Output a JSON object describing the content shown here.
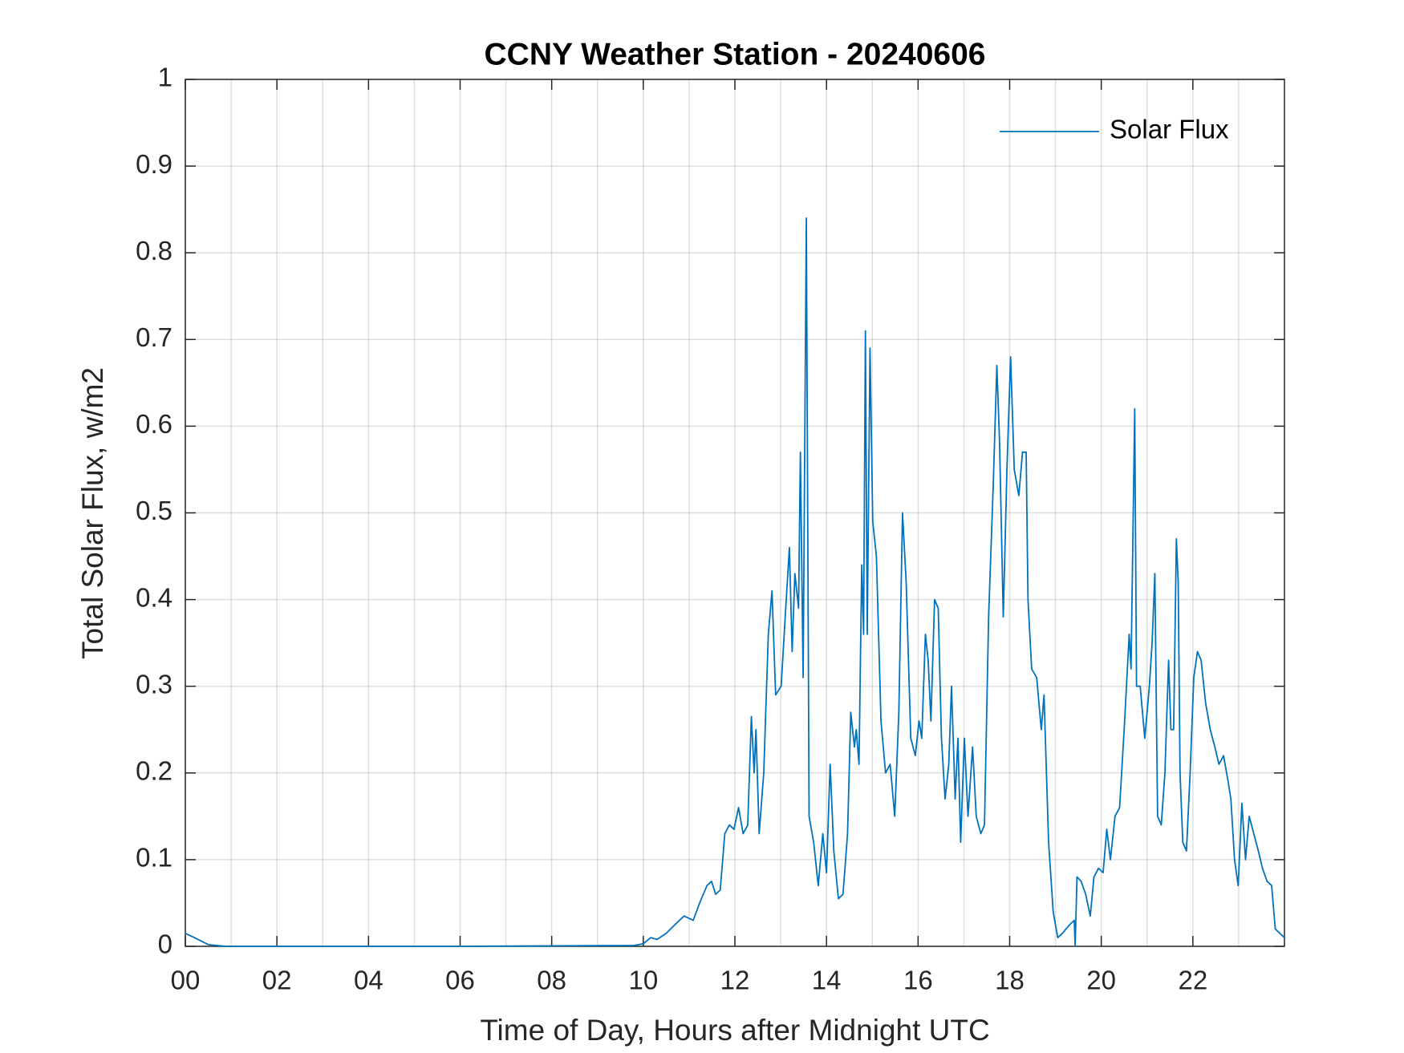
{
  "chart_data": {
    "type": "line",
    "title": "CCNY Weather Station - 20240606",
    "xlabel": "Time of Day, Hours after Midnight UTC",
    "ylabel": "Total Solar Flux, w/m2",
    "xlim": [
      0,
      24
    ],
    "ylim": [
      0,
      1
    ],
    "xticks": [
      {
        "value": 0,
        "label": "00"
      },
      {
        "value": 2,
        "label": "02"
      },
      {
        "value": 4,
        "label": "04"
      },
      {
        "value": 6,
        "label": "06"
      },
      {
        "value": 8,
        "label": "08"
      },
      {
        "value": 10,
        "label": "10"
      },
      {
        "value": 12,
        "label": "12"
      },
      {
        "value": 14,
        "label": "14"
      },
      {
        "value": 16,
        "label": "16"
      },
      {
        "value": 18,
        "label": "18"
      },
      {
        "value": 20,
        "label": "20"
      },
      {
        "value": 22,
        "label": "22"
      }
    ],
    "xminorticks": [
      1,
      3,
      5,
      7,
      9,
      11,
      13,
      15,
      17,
      19,
      21,
      23
    ],
    "yticks": [
      0,
      0.1,
      0.2,
      0.3,
      0.4,
      0.5,
      0.6,
      0.7,
      0.8,
      0.9,
      1
    ],
    "grid": true,
    "legend": "northeast",
    "x": [
      0,
      0.2,
      0.5,
      0.89,
      5.84,
      9.8,
      10.0,
      10.16,
      10.3,
      10.5,
      10.69,
      10.89,
      11.09,
      11.23,
      11.39,
      11.49,
      11.58,
      11.68,
      11.78,
      11.88,
      11.98,
      12.08,
      12.18,
      12.28,
      12.36,
      12.42,
      12.46,
      12.53,
      12.63,
      12.73,
      12.81,
      12.89,
      13.01,
      13.11,
      13.19,
      13.25,
      13.31,
      13.39,
      13.43,
      13.49,
      13.56,
      13.62,
      13.72,
      13.82,
      13.92,
      14.0,
      14.08,
      14.16,
      14.26,
      14.36,
      14.46,
      14.53,
      14.61,
      14.65,
      14.71,
      14.77,
      14.81,
      14.85,
      14.89,
      14.95,
      15.01,
      15.09,
      15.19,
      15.29,
      15.39,
      15.49,
      15.58,
      15.66,
      15.74,
      15.84,
      15.94,
      16.02,
      16.08,
      16.16,
      16.22,
      16.28,
      16.36,
      16.44,
      16.51,
      16.59,
      16.67,
      16.73,
      16.81,
      16.87,
      16.93,
      17.01,
      17.09,
      17.19,
      17.27,
      17.37,
      17.45,
      17.54,
      17.64,
      17.72,
      17.78,
      17.86,
      17.94,
      18.02,
      18.1,
      18.2,
      18.28,
      18.36,
      18.4,
      18.48,
      18.59,
      18.69,
      18.75,
      18.85,
      18.95,
      19.05,
      19.15,
      19.31,
      19.41,
      19.43,
      19.47,
      19.56,
      19.66,
      19.76,
      19.84,
      19.94,
      20.04,
      20.12,
      20.2,
      20.3,
      20.4,
      20.5,
      20.55,
      20.61,
      20.65,
      20.73,
      20.77,
      20.85,
      20.95,
      21.05,
      21.11,
      21.17,
      21.23,
      21.31,
      21.39,
      21.47,
      21.52,
      21.58,
      21.64,
      21.68,
      21.72,
      21.78,
      21.86,
      21.94,
      22.02,
      22.1,
      22.18,
      22.28,
      22.38,
      22.48,
      22.57,
      22.67,
      22.77,
      22.83,
      22.91,
      22.99,
      23.07,
      23.15,
      23.23,
      23.33,
      23.43,
      23.52,
      23.62,
      23.72,
      23.8,
      24.0
    ],
    "series": [
      {
        "name": "Solar Flux",
        "color": "#0072bd",
        "values": [
          0.015,
          0.01,
          0.002,
          0,
          0,
          0.001,
          0.003,
          0.01,
          0.008,
          0.015,
          0.025,
          0.035,
          0.03,
          0.05,
          0.07,
          0.075,
          0.06,
          0.065,
          0.13,
          0.14,
          0.135,
          0.16,
          0.13,
          0.14,
          0.265,
          0.2,
          0.25,
          0.13,
          0.2,
          0.36,
          0.41,
          0.29,
          0.3,
          0.39,
          0.46,
          0.34,
          0.43,
          0.39,
          0.57,
          0.31,
          0.84,
          0.15,
          0.12,
          0.07,
          0.13,
          0.085,
          0.21,
          0.11,
          0.055,
          0.06,
          0.13,
          0.27,
          0.23,
          0.25,
          0.21,
          0.44,
          0.36,
          0.71,
          0.36,
          0.69,
          0.49,
          0.45,
          0.26,
          0.2,
          0.21,
          0.15,
          0.27,
          0.5,
          0.42,
          0.24,
          0.22,
          0.26,
          0.24,
          0.36,
          0.33,
          0.26,
          0.4,
          0.39,
          0.24,
          0.17,
          0.21,
          0.3,
          0.17,
          0.24,
          0.12,
          0.24,
          0.15,
          0.23,
          0.15,
          0.13,
          0.14,
          0.38,
          0.53,
          0.67,
          0.58,
          0.38,
          0.55,
          0.68,
          0.55,
          0.52,
          0.57,
          0.57,
          0.4,
          0.32,
          0.31,
          0.25,
          0.29,
          0.12,
          0.04,
          0.01,
          0.015,
          0.025,
          0.03,
          0,
          0.08,
          0.075,
          0.06,
          0.035,
          0.08,
          0.09,
          0.085,
          0.135,
          0.1,
          0.15,
          0.16,
          0.25,
          0.3,
          0.36,
          0.32,
          0.62,
          0.3,
          0.3,
          0.24,
          0.3,
          0.35,
          0.43,
          0.15,
          0.14,
          0.2,
          0.33,
          0.25,
          0.25,
          0.47,
          0.42,
          0.2,
          0.12,
          0.11,
          0.2,
          0.31,
          0.34,
          0.33,
          0.28,
          0.25,
          0.23,
          0.21,
          0.22,
          0.19,
          0.17,
          0.1,
          0.07,
          0.165,
          0.1,
          0.15,
          0.13,
          0.11,
          0.09,
          0.075,
          0.07,
          0.02,
          0.01
        ]
      }
    ]
  }
}
